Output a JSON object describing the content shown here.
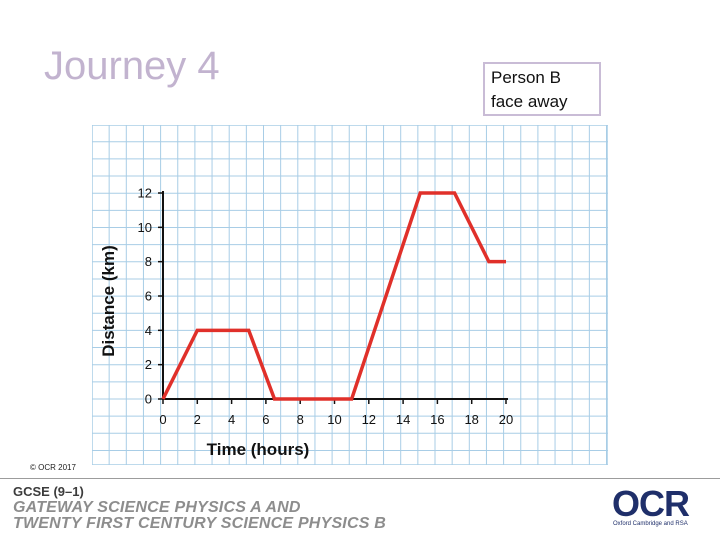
{
  "slide": {
    "title": "Journey 4"
  },
  "note": {
    "line1": "Person B",
    "line2": "face away"
  },
  "footer": {
    "copyright": "© OCR 2017",
    "qualification": "GCSE (9–1)",
    "line1": "GATEWAY SCIENCE PHYSICS A AND",
    "line2": "TWENTY FIRST CENTURY SCIENCE PHYSICS B",
    "logo_text": "OCR",
    "logo_subtext": "Oxford Cambridge and RSA"
  },
  "colors": {
    "grid": "#a8cde6",
    "line": "#e0302a",
    "title": "#c2b3cf",
    "logo": "#1f2f6a"
  },
  "chart_data": {
    "type": "line",
    "xlabel": "Time (hours)",
    "ylabel": "Distance (km)",
    "xlim": [
      0,
      20
    ],
    "ylim": [
      0,
      12
    ],
    "xticks": [
      0,
      2,
      4,
      6,
      8,
      10,
      12,
      14,
      16,
      18,
      20
    ],
    "yticks": [
      0,
      2,
      4,
      6,
      8,
      10,
      12
    ],
    "grid": true,
    "series": [
      {
        "x": [
          0,
          2,
          5,
          6.5,
          11,
          15,
          17,
          19,
          20
        ],
        "y": [
          0,
          4,
          4,
          0,
          0,
          12,
          12,
          8,
          8
        ]
      }
    ]
  }
}
